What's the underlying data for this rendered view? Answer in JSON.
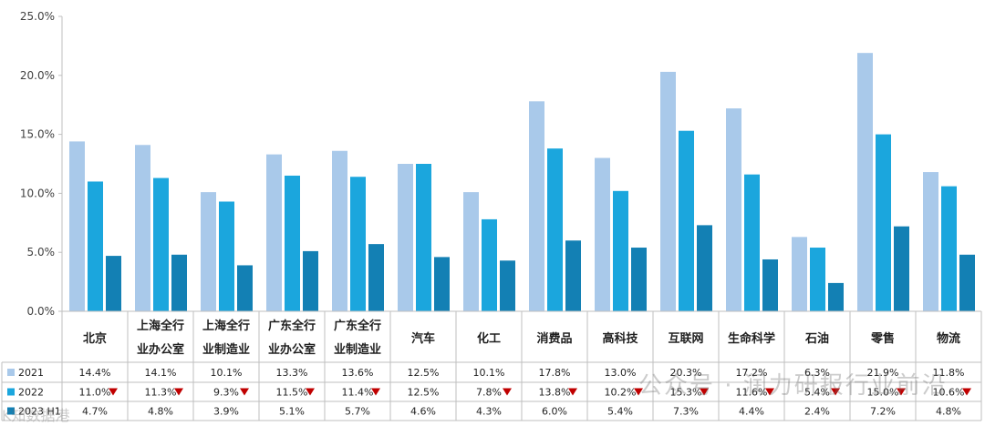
{
  "chart_data": {
    "type": "bar",
    "categories": [
      "北京",
      "上海全行\n业办公室",
      "上海全行\n业制造业",
      "广东全行\n业办公室",
      "广东全行\n业制造业",
      "汽车",
      "化工",
      "消费品",
      "高科技",
      "互联网",
      "生命科学",
      "石油",
      "零售",
      "物流"
    ],
    "series": [
      {
        "name": "2021",
        "color": "#a9c9ea",
        "values": [
          14.4,
          14.1,
          10.1,
          13.3,
          13.6,
          12.5,
          10.1,
          17.8,
          13.0,
          20.3,
          17.2,
          6.3,
          21.9,
          11.8
        ],
        "labels": [
          "14.4%",
          "14.1%",
          "10.1%",
          "13.3%",
          "13.6%",
          "12.5%",
          "10.1%",
          "17.8%",
          "13.0%",
          "20.3%",
          "17.2%",
          "6.3%",
          "21.9%",
          "11.8%"
        ]
      },
      {
        "name": "2022",
        "color": "#1ba6dd",
        "values": [
          11.0,
          11.3,
          9.3,
          11.5,
          11.4,
          12.5,
          7.8,
          13.8,
          10.2,
          15.3,
          11.6,
          5.4,
          15.0,
          10.6
        ],
        "labels": [
          "11.0%",
          "11.3%",
          "9.3%",
          "11.5%",
          "11.4%",
          "12.5%",
          "7.8%",
          "13.8%",
          "10.2%",
          "15.3%",
          "11.6%",
          "5.4%",
          "15.0%",
          "10.6%"
        ],
        "decrease": [
          true,
          true,
          true,
          true,
          true,
          false,
          true,
          true,
          true,
          true,
          true,
          true,
          true,
          true
        ]
      },
      {
        "name": "2023 H1",
        "color": "#1380b4",
        "values": [
          4.7,
          4.8,
          3.9,
          5.1,
          5.7,
          4.6,
          4.3,
          6.0,
          5.4,
          7.3,
          4.4,
          2.4,
          7.2,
          4.8
        ],
        "labels": [
          "4.7%",
          "4.8%",
          "3.9%",
          "5.1%",
          "5.7%",
          "4.6%",
          "4.3%",
          "6.0%",
          "5.4%",
          "7.3%",
          "4.4%",
          "2.4%",
          "7.2%",
          "4.8%"
        ]
      }
    ],
    "ylim": [
      0,
      25
    ],
    "yticks": [
      "0.0%",
      "5.0%",
      "10.0%",
      "15.0%",
      "20.0%",
      "25.0%"
    ],
    "grid": false,
    "legend": "left column of data table",
    "decrease_marker_color": "#c00000",
    "watermark_texts": [
      "公众号 · 润力研报行业前沿",
      "K知数据港"
    ]
  }
}
